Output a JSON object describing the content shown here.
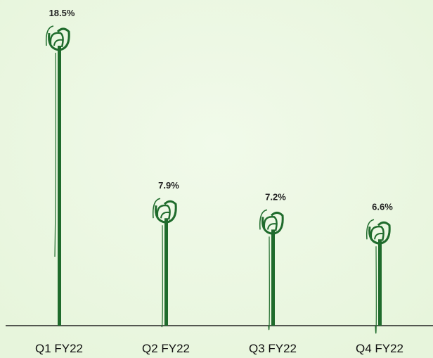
{
  "chart_data": {
    "type": "pictorial-bar",
    "categories": [
      "Q1 FY22",
      "Q2 FY22",
      "Q3 FY22",
      "Q4 FY22"
    ],
    "values": [
      18.5,
      7.9,
      7.2,
      6.6
    ],
    "value_labels": [
      "18.5%",
      "7.9%",
      "7.2%",
      "6.6%"
    ],
    "color": "#1f6b2c"
  }
}
